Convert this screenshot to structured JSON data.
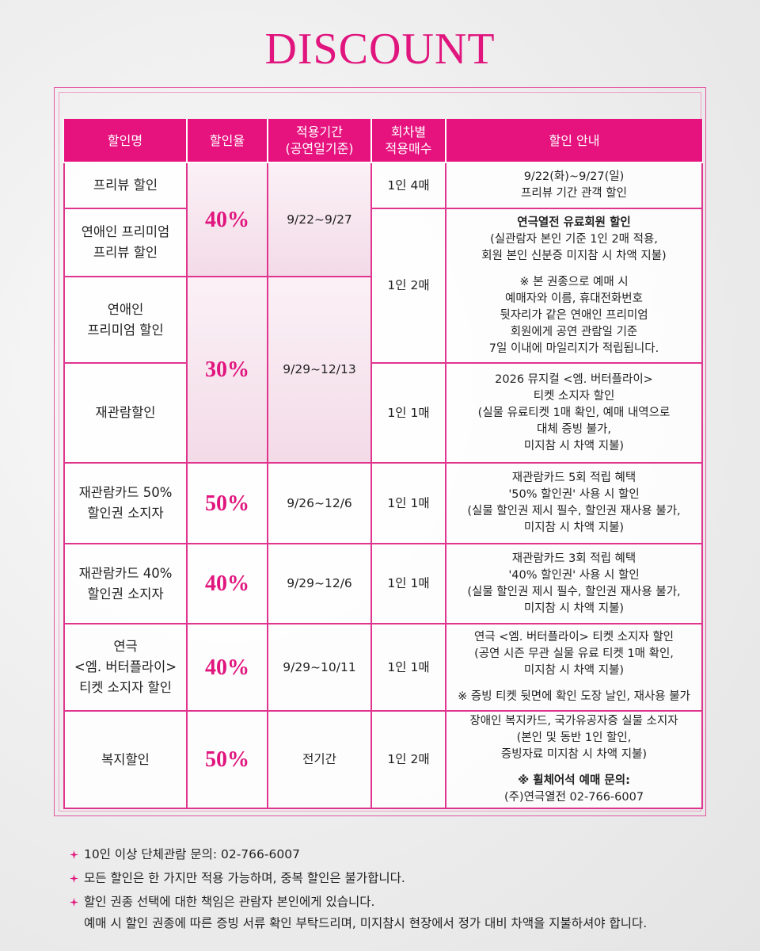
{
  "title": "DISCOUNT",
  "table": {
    "headers": [
      [
        "할인명"
      ],
      [
        "할인율"
      ],
      [
        "적용기간",
        "(공연일기준)"
      ],
      [
        "회차별",
        "적용매수"
      ],
      [
        "할인 안내"
      ]
    ],
    "rows": [
      {
        "name": [
          "프리뷰 할인"
        ],
        "rate": "40%",
        "period": "9/22~9/27",
        "count": "1인 4매",
        "info": [
          "9/22(화)~9/27(일)",
          "프리뷰 기간 관객 할인"
        ]
      },
      {
        "name": [
          "연애인 프리미엄",
          "프리뷰 할인"
        ],
        "count": "1인 2매",
        "info": [
          "연극열전 유료회원 할인",
          "(실관람자 본인 기준 1인 2매 적용,",
          "회원 본인 신분증 미지참 시 차액 지불)",
          "※ 본 권종으로 예매 시",
          "예매자와 이름, 휴대전화번호",
          "뒷자리가 같은 연애인 프리미엄",
          "회원에게 공연 관람일 기준",
          "7일 이내에 마일리지가 적립됩니다."
        ]
      },
      {
        "name": [
          "연애인",
          "프리미엄 할인"
        ],
        "rate": "30%",
        "period": "9/29~12/13"
      },
      {
        "name": [
          "재관람할인"
        ],
        "count": "1인 1매",
        "info": [
          "2026 뮤지컬 <엠. 버터플라이>",
          "티켓 소지자 할인",
          "(실물 유료티켓 1매 확인, 예매 내역으로",
          "대체 증빙 불가,",
          "미지참 시 차액 지불)"
        ]
      },
      {
        "name": [
          "재관람카드 50%",
          "할인권 소지자"
        ],
        "rate": "50%",
        "period": "9/26~12/6",
        "count": "1인 1매",
        "info": [
          "재관람카드 5회 적립 혜택",
          "'50% 할인권' 사용 시 할인",
          "(실물 할인권 제시 필수, 할인권 재사용 불가,",
          "미지참 시 차액 지불)"
        ]
      },
      {
        "name": [
          "재관람카드 40%",
          "할인권 소지자"
        ],
        "rate": "40%",
        "period": "9/29~12/6",
        "count": "1인 1매",
        "info": [
          "재관람카드 3회 적립 혜택",
          "'40% 할인권' 사용 시 할인",
          "(실물 할인권 제시 필수, 할인권 재사용 불가,",
          "미지참 시 차액 지불)"
        ]
      },
      {
        "name": [
          "연극",
          "<엠. 버터플라이>",
          "티켓 소지자 할인"
        ],
        "rate": "40%",
        "period": "9/29~10/11",
        "count": "1인 1매",
        "info": [
          "연극 <엠. 버터플라이> 티켓 소지자 할인",
          "(공연 시즌 무관 실물 유료 티켓 1매 확인,",
          "미지참 시 차액 지불)",
          "※ 증빙 티켓 뒷면에 확인 도장 날인, 재사용 불가"
        ]
      },
      {
        "name": [
          "복지할인"
        ],
        "rate": "50%",
        "period": "전기간",
        "count": "1인 2매",
        "info": [
          "장애인 복지카드, 국가유공자증 실물 소지자",
          "(본인 및 동반 1인 할인,",
          "증빙자료 미지참 시 차액 지불)",
          "※ 휠체어석 예매 문의:",
          "(주)연극열전 02-766-6007"
        ]
      }
    ]
  },
  "notes": [
    [
      "10인 이상 단체관람 문의: 02-766-6007"
    ],
    [
      "모든 할인은 한 가지만 적용 가능하며, 중복 할인은 불가합니다."
    ],
    [
      "할인 권종 선택에 대한 책임은 관람자 본인에게 있습니다.",
      "예매 시 할인 권종에 따른 증빙 서류 확인 부탁드리며, 미지참시 현장에서 정가 대비 차액을 지불하셔야 합니다."
    ]
  ]
}
